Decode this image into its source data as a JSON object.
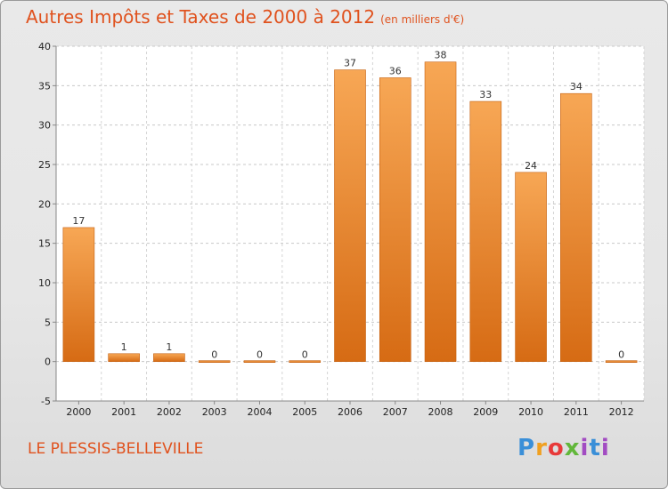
{
  "title": "Autres Impôts et Taxes de 2000 à 2012",
  "subtitle": "(en milliers d'€)",
  "place": "LE PLESSIS-BELLEVILLE",
  "logo": "Proxiti",
  "colors": {
    "bar_top": "#f7a755",
    "bar_bottom": "#d66b14",
    "title": "#e0521e"
  },
  "chart_data": {
    "type": "bar",
    "title": "Autres Impôts et Taxes de 2000 à 2012",
    "subtitle": "(en milliers d'€)",
    "categories": [
      "2000",
      "2001",
      "2002",
      "2003",
      "2004",
      "2005",
      "2006",
      "2007",
      "2008",
      "2009",
      "2010",
      "2011",
      "2012"
    ],
    "values": [
      17,
      1,
      1,
      0,
      0,
      0,
      37,
      36,
      38,
      33,
      24,
      34,
      0
    ],
    "value_labels": [
      "17",
      "1",
      "1",
      "0",
      "0",
      "0",
      "37",
      "36",
      "38",
      "33",
      "24",
      "34",
      "0"
    ],
    "ylim": [
      -5,
      40
    ],
    "yticks": [
      -5,
      0,
      5,
      10,
      15,
      20,
      25,
      30,
      35,
      40
    ],
    "ytick_labels": [
      "-5",
      "0",
      "5",
      "10",
      "15",
      "20",
      "25",
      "30",
      "35",
      "40"
    ],
    "grid": true,
    "legend": "none"
  }
}
